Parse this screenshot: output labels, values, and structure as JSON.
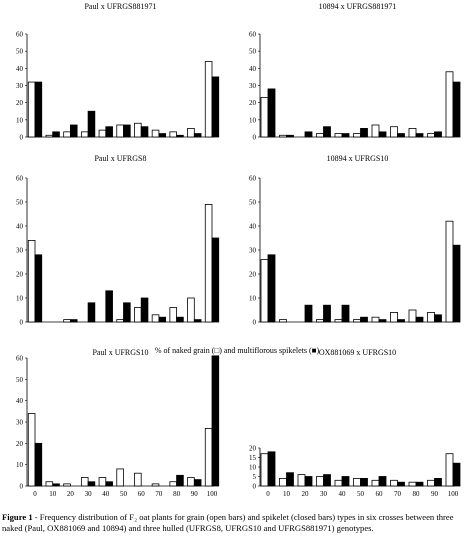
{
  "figure": {
    "x_axis_label": "% of naked grain (□) and multiflorous spikelets (■)",
    "caption_label": "Figure 1",
    "caption_text": " - Frequency distribution of F₂ oat plants for grain (open bars) and spikelet (closed bars) types in six crosses between three naked (Paul, OX881069 and 10894) and three hulled (UFRGS8, UFRGS10 and UFRGS881971) genotypes."
  },
  "chart_data": [
    {
      "type": "bar",
      "title": "Paul x UFRGS881971",
      "categories": [
        "0",
        "10",
        "20",
        "30",
        "40",
        "50",
        "60",
        "70",
        "80",
        "90",
        "100"
      ],
      "ylim": [
        0,
        60
      ],
      "yticks": [
        0,
        10,
        20,
        30,
        40,
        50,
        60
      ],
      "series": [
        {
          "style": "open",
          "values": [
            32,
            1,
            3,
            3,
            4,
            7,
            8,
            4,
            3,
            5,
            44
          ]
        },
        {
          "style": "closed",
          "values": [
            32,
            3,
            7,
            15,
            6,
            7,
            6,
            2,
            1,
            2,
            35
          ]
        }
      ]
    },
    {
      "type": "bar",
      "title": "10894 x UFRGS881971",
      "categories": [
        "0",
        "10",
        "20",
        "30",
        "40",
        "50",
        "60",
        "70",
        "80",
        "90",
        "100"
      ],
      "ylim": [
        0,
        60
      ],
      "yticks": [
        0,
        10,
        20,
        30,
        40,
        50,
        60
      ],
      "series": [
        {
          "style": "open",
          "values": [
            23,
            1,
            0,
            2,
            2,
            2,
            7,
            6,
            5,
            2,
            38
          ]
        },
        {
          "style": "closed",
          "values": [
            28,
            1,
            3,
            6,
            2,
            5,
            3,
            2,
            2,
            3,
            32
          ]
        }
      ]
    },
    {
      "type": "bar",
      "title": "Paul x UFRGS8",
      "categories": [
        "0",
        "10",
        "20",
        "30",
        "40",
        "50",
        "60",
        "70",
        "80",
        "90",
        "100"
      ],
      "ylim": [
        0,
        60
      ],
      "yticks": [
        0,
        10,
        20,
        30,
        40,
        50,
        60
      ],
      "series": [
        {
          "style": "open",
          "values": [
            34,
            0,
            1,
            0,
            0,
            1,
            6,
            3,
            6,
            10,
            49
          ]
        },
        {
          "style": "closed",
          "values": [
            28,
            0,
            1,
            8,
            13,
            8,
            10,
            2,
            2,
            1,
            35
          ]
        }
      ]
    },
    {
      "type": "bar",
      "title": "10894 x UFRGS10",
      "categories": [
        "0",
        "10",
        "20",
        "30",
        "40",
        "50",
        "60",
        "70",
        "80",
        "90",
        "100"
      ],
      "ylim": [
        0,
        60
      ],
      "yticks": [
        0,
        10,
        20,
        30,
        40,
        50,
        60
      ],
      "series": [
        {
          "style": "open",
          "values": [
            26,
            1,
            0,
            1,
            1,
            1,
            2,
            4,
            5,
            4,
            42
          ]
        },
        {
          "style": "closed",
          "values": [
            28,
            0,
            7,
            7,
            7,
            2,
            1,
            1,
            2,
            3,
            32
          ]
        }
      ]
    },
    {
      "type": "bar",
      "title": "Paul x UFRGS10",
      "categories": [
        "0",
        "10",
        "20",
        "30",
        "40",
        "50",
        "60",
        "70",
        "80",
        "90",
        "100"
      ],
      "ylim": [
        0,
        60
      ],
      "yticks": [
        0,
        10,
        20,
        30,
        40,
        50,
        60
      ],
      "series": [
        {
          "style": "open",
          "values": [
            34,
            2,
            1,
            4,
            4,
            8,
            6,
            1,
            2,
            4,
            27
          ]
        },
        {
          "style": "closed",
          "values": [
            20,
            1,
            0,
            2,
            2,
            0,
            0,
            0,
            5,
            3,
            61
          ]
        }
      ]
    },
    {
      "type": "bar",
      "title": "OX881069 x UFRGS10",
      "categories": [
        "0",
        "10",
        "20",
        "30",
        "40",
        "50",
        "60",
        "70",
        "80",
        "90",
        "100"
      ],
      "ylim": [
        0,
        20
      ],
      "yticks": [
        0,
        5,
        10,
        15,
        20
      ],
      "series": [
        {
          "style": "open",
          "values": [
            17,
            4,
            6,
            5,
            3,
            4,
            3,
            3,
            2,
            3,
            17
          ]
        },
        {
          "style": "closed",
          "values": [
            18,
            7,
            5,
            6,
            5,
            4,
            5,
            2,
            2,
            4,
            12
          ]
        }
      ]
    }
  ]
}
